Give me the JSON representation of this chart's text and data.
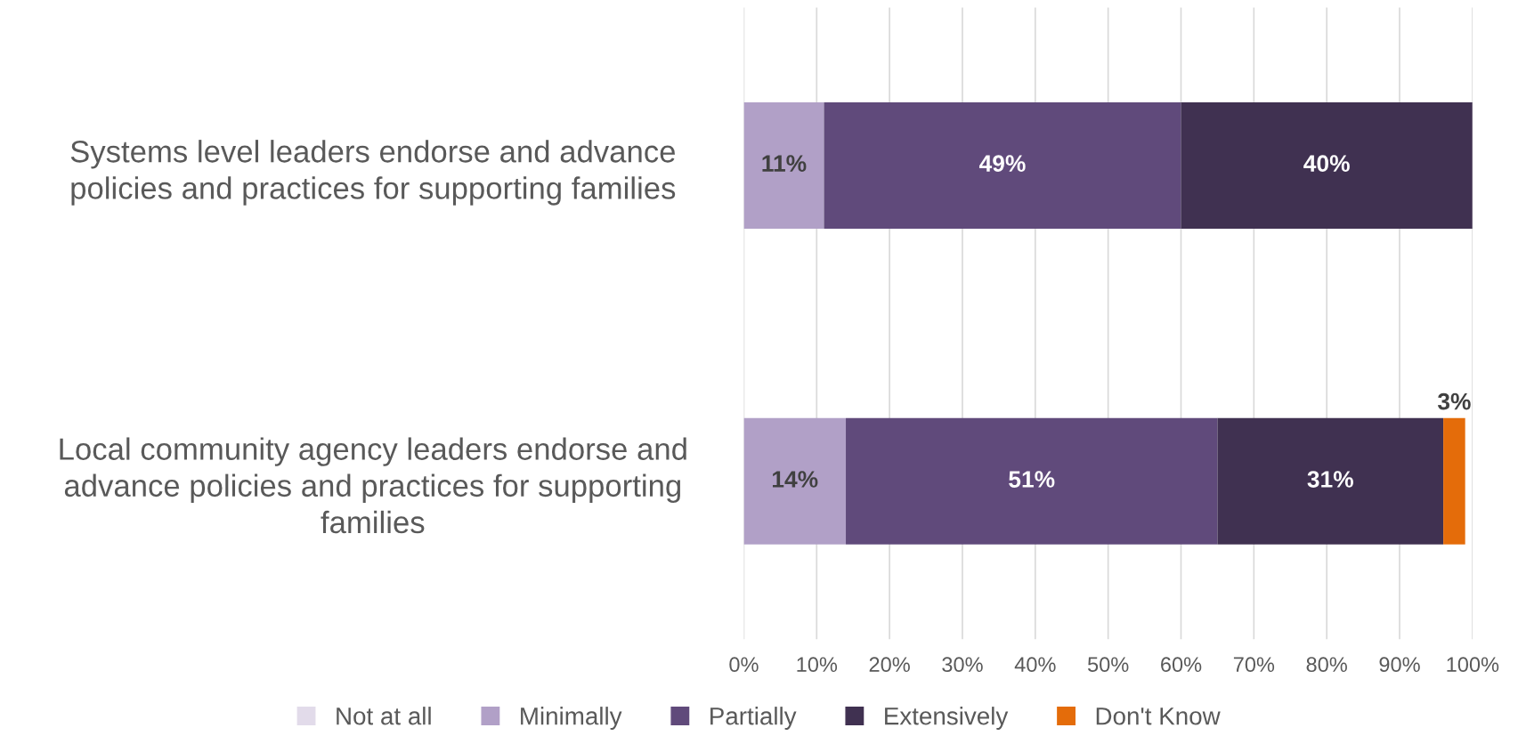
{
  "chart_data": {
    "type": "bar",
    "orientation": "horizontal",
    "stacked": true,
    "categories": [
      "Systems level leaders endorse and advance\npolicies and practices for supporting families",
      "Local community agency leaders endorse and\nadvance policies and practices for supporting\nfamilies"
    ],
    "series": [
      {
        "name": "Not at all",
        "color": "#e2dbea",
        "values": [
          0,
          0
        ],
        "value_labels": [
          null,
          null
        ]
      },
      {
        "name": "Minimally",
        "color": "#b1a0c7",
        "values": [
          11,
          14
        ],
        "value_labels": [
          "11%",
          "14%"
        ]
      },
      {
        "name": "Partially",
        "color": "#604a7b",
        "values": [
          49,
          51
        ],
        "value_labels": [
          "49%",
          "51%"
        ]
      },
      {
        "name": "Extensively",
        "color": "#403151",
        "values": [
          40,
          31
        ],
        "value_labels": [
          "40%",
          "31%"
        ]
      },
      {
        "name": "Don't Know",
        "color": "#e46c0a",
        "values": [
          0,
          3
        ],
        "value_labels": [
          null,
          "3%"
        ]
      }
    ],
    "xlim": [
      0,
      100
    ],
    "xticks": [
      {
        "value": 0,
        "label": "0%"
      },
      {
        "value": 10,
        "label": "10%"
      },
      {
        "value": 20,
        "label": "20%"
      },
      {
        "value": 30,
        "label": "30%"
      },
      {
        "value": 40,
        "label": "40%"
      },
      {
        "value": 50,
        "label": "50%"
      },
      {
        "value": 60,
        "label": "60%"
      },
      {
        "value": 70,
        "label": "70%"
      },
      {
        "value": 80,
        "label": "80%"
      },
      {
        "value": 90,
        "label": "90%"
      },
      {
        "value": 100,
        "label": "100%"
      }
    ],
    "grid": "x",
    "legend": "bottom"
  }
}
